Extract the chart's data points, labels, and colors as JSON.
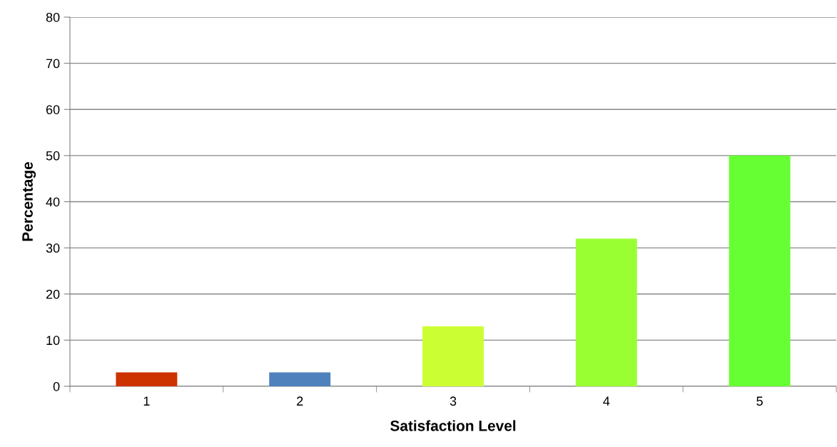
{
  "chart_data": {
    "type": "bar",
    "xlabel": "Satisfaction Level",
    "ylabel": "Percentage",
    "categories": [
      "1",
      "2",
      "3",
      "4",
      "5"
    ],
    "values": [
      3,
      3,
      13,
      32,
      50
    ],
    "colors": [
      "#cc3300",
      "#4f81bd",
      "#ccff33",
      "#99ff33",
      "#66ff33"
    ],
    "ylim": [
      0,
      80
    ],
    "yticks": [
      0,
      10,
      20,
      30,
      40,
      50,
      60,
      70,
      80
    ],
    "grid": "y",
    "legend": false
  }
}
